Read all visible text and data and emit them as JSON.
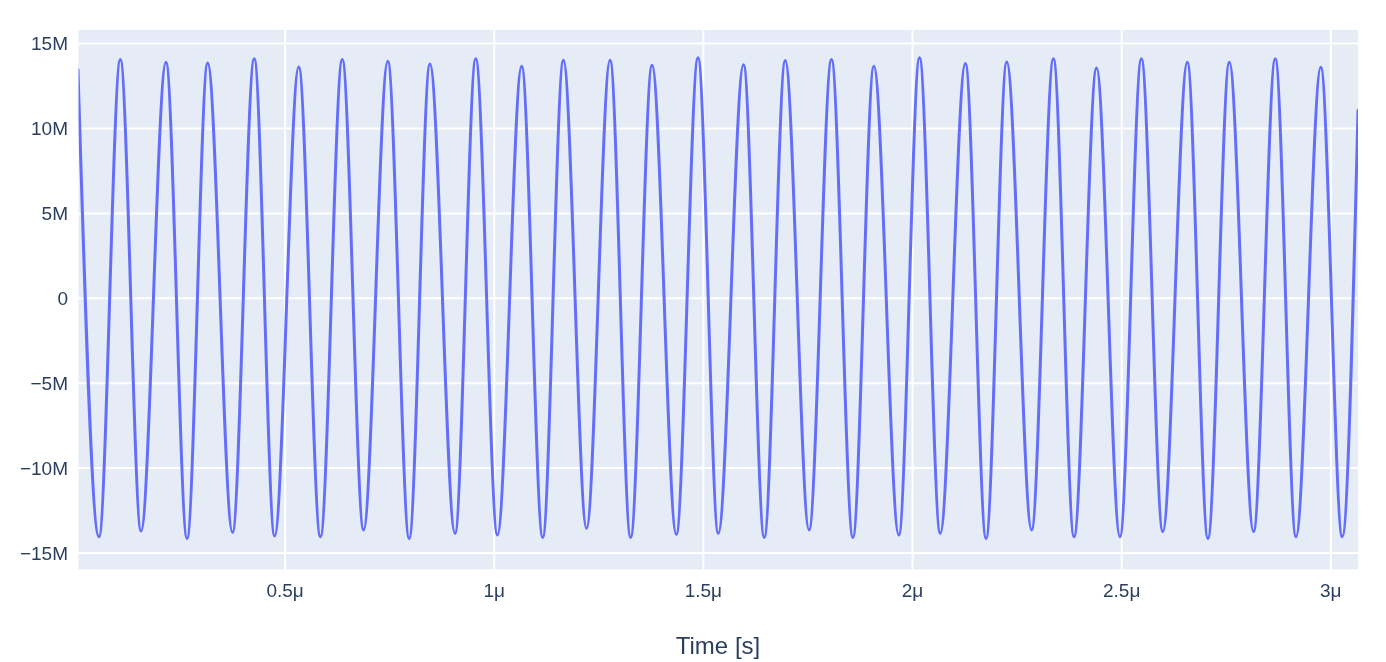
{
  "chart_data": {
    "type": "line",
    "xlabel": "Time [s]",
    "xlim": [
      0.0048,
      3.065
    ],
    "xticks": [
      {
        "value": 0.5,
        "label": "0.5μ"
      },
      {
        "value": 1,
        "label": "1μ"
      },
      {
        "value": 1.5,
        "label": "1.5μ"
      },
      {
        "value": 2,
        "label": "2μ"
      },
      {
        "value": 2.5,
        "label": "2.5μ"
      },
      {
        "value": 3,
        "label": "3μ"
      }
    ],
    "ylim": [
      -16000000.0,
      15800000.0
    ],
    "yticks": [
      {
        "value": -15000000.0,
        "label": "−15M"
      },
      {
        "value": -10000000.0,
        "label": "−10M"
      },
      {
        "value": -5000000.0,
        "label": "−5M"
      },
      0,
      {
        "value": 5000000.0,
        "label": "5M"
      },
      {
        "value": 10000000.0,
        "label": "10M"
      },
      {
        "value": 15000000.0,
        "label": "15M"
      }
    ],
    "grid": true,
    "series": [
      {
        "color": "#636efa",
        "x": [
          0.0048,
          0.055,
          0.106,
          0.1555,
          0.2151,
          0.2655,
          0.3148,
          0.3742,
          0.4261,
          0.4749,
          0.5325,
          0.5844,
          0.6366,
          0.6875,
          0.7454,
          0.7966,
          0.8462,
          0.9062,
          0.9557,
          1.0076,
          1.0655,
          1.1158,
          1.1653,
          1.2206,
          1.2768,
          1.326,
          1.3772,
          1.4352,
          1.4871,
          1.5356,
          1.5959,
          1.6455,
          1.6957,
          1.7526,
          1.8062,
          1.8574,
          1.9076,
          1.9672,
          2.0167,
          2.0662,
          2.1263,
          2.1758,
          2.2253,
          2.2847,
          2.3368,
          2.3861,
          2.4399,
          2.4959,
          2.5471,
          2.5983,
          2.6569,
          2.7062,
          2.7574,
          2.8153,
          2.8672,
          2.9167,
          2.9761,
          3.0273,
          3.065
        ],
        "values": [
          13460000.0,
          -14040000.0,
          14060000.0,
          -13700000.0,
          13900000.0,
          -14140000.0,
          13860000.0,
          -13780000.0,
          14100000.0,
          -14000000.0,
          13620000.0,
          -14040000.0,
          14060000.0,
          -13640000.0,
          13960000.0,
          -14140000.0,
          13800000.0,
          -13840000.0,
          14100000.0,
          -13940000.0,
          13660000.0,
          -14080000.0,
          14020000.0,
          -13540000.0,
          14020000.0,
          -14080000.0,
          13720000.0,
          -13900000.0,
          14160000.0,
          -13840000.0,
          13760000.0,
          -14080000.0,
          14000000.0,
          -13640000.0,
          14060000.0,
          -14080000.0,
          13660000.0,
          -13940000.0,
          14160000.0,
          -13840000.0,
          13820000.0,
          -14140000.0,
          13920000.0,
          -13640000.0,
          14100000.0,
          -14040000.0,
          13560000.0,
          -14040000.0,
          14100000.0,
          -13740000.0,
          13900000.0,
          -14140000.0,
          13900000.0,
          -13740000.0,
          14100000.0,
          -14040000.0,
          13600000.0,
          -14040000.0,
          11060000.0
        ]
      }
    ]
  }
}
